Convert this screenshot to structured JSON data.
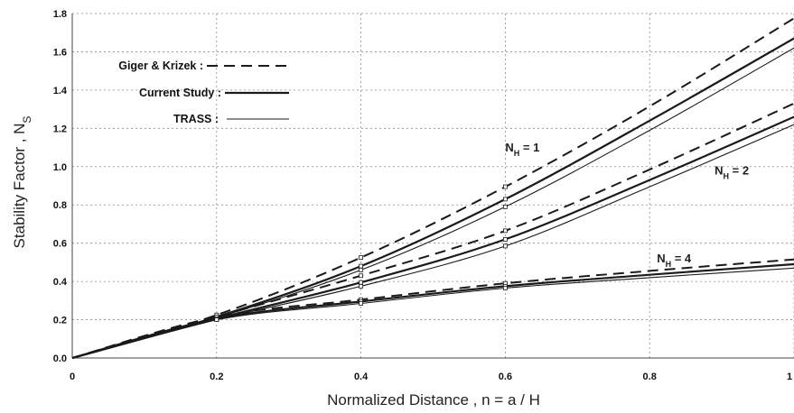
{
  "chart_data": {
    "type": "line",
    "title": "",
    "xlabel": "Normalized Distance , n = a / H",
    "ylabel": "Stability Factor , N",
    "ylabel_sub": "S",
    "xlim": [
      0,
      1
    ],
    "ylim": [
      0,
      1.8
    ],
    "x_ticks": [
      0,
      0.2,
      0.4,
      0.6,
      0.8,
      1
    ],
    "x_tick_labels": [
      "0",
      "0.2",
      "0.4",
      "0.6",
      "0.8",
      "1"
    ],
    "y_ticks": [
      0,
      0.2,
      0.4,
      0.6,
      0.8,
      1.0,
      1.2,
      1.4,
      1.6,
      1.8
    ],
    "y_tick_labels": [
      "0.0",
      "0.2",
      "0.4",
      "0.6",
      "0.8",
      "1.0",
      "1.2",
      "1.4",
      "1.6",
      "1.8"
    ],
    "grid": true,
    "legend_position": "top-left",
    "legend": [
      {
        "label": "Giger & Krizek :",
        "style": "dashed"
      },
      {
        "label": "Current Study :",
        "style": "thick-solid"
      },
      {
        "label": "TRASS :",
        "style": "thin-solid"
      }
    ],
    "annotations": [
      {
        "text": "N",
        "sub": "H",
        "suffix": " = 1",
        "x": 0.6,
        "y": 1.08
      },
      {
        "text": "N",
        "sub": "H",
        "suffix": " = 2",
        "x": 0.89,
        "y": 0.96
      },
      {
        "text": "N",
        "sub": "H",
        "suffix": " = 4",
        "x": 0.81,
        "y": 0.5
      }
    ],
    "x": [
      0,
      0.2,
      0.4,
      0.6,
      0.8,
      1.0
    ],
    "series": [
      {
        "name": "Giger & Krizek",
        "group": "N_H = 1",
        "style": "dashed",
        "values": [
          0,
          0.225,
          0.525,
          0.895,
          1.315,
          1.775
        ]
      },
      {
        "name": "Current Study",
        "group": "N_H = 1",
        "style": "thick-solid",
        "values": [
          0,
          0.215,
          0.48,
          0.83,
          1.24,
          1.67
        ]
      },
      {
        "name": "TRASS",
        "group": "N_H = 1",
        "style": "thin-solid",
        "values": [
          0,
          0.21,
          0.46,
          0.79,
          1.19,
          1.62
        ]
      },
      {
        "name": "Giger & Krizek",
        "group": "N_H = 2",
        "style": "dashed",
        "values": [
          0,
          0.215,
          0.43,
          0.665,
          0.985,
          1.33
        ]
      },
      {
        "name": "Current Study",
        "group": "N_H = 2",
        "style": "thick-solid",
        "values": [
          0,
          0.205,
          0.395,
          0.62,
          0.93,
          1.26
        ]
      },
      {
        "name": "TRASS",
        "group": "N_H = 2",
        "style": "thin-solid",
        "values": [
          0,
          0.2,
          0.375,
          0.585,
          0.895,
          1.22
        ]
      },
      {
        "name": "Giger & Krizek",
        "group": "N_H = 4",
        "style": "dashed",
        "values": [
          0,
          0.215,
          0.305,
          0.39,
          0.455,
          0.515
        ]
      },
      {
        "name": "Current Study",
        "group": "N_H = 4",
        "style": "thick-solid",
        "values": [
          0,
          0.205,
          0.295,
          0.375,
          0.435,
          0.49
        ]
      },
      {
        "name": "TRASS",
        "group": "N_H = 4",
        "style": "thin-solid",
        "values": [
          0,
          0.2,
          0.285,
          0.365,
          0.42,
          0.47
        ]
      }
    ],
    "colors": {
      "line": "#1a1a1a",
      "grid": "#8a8a8a",
      "background": "#ffffff"
    }
  }
}
